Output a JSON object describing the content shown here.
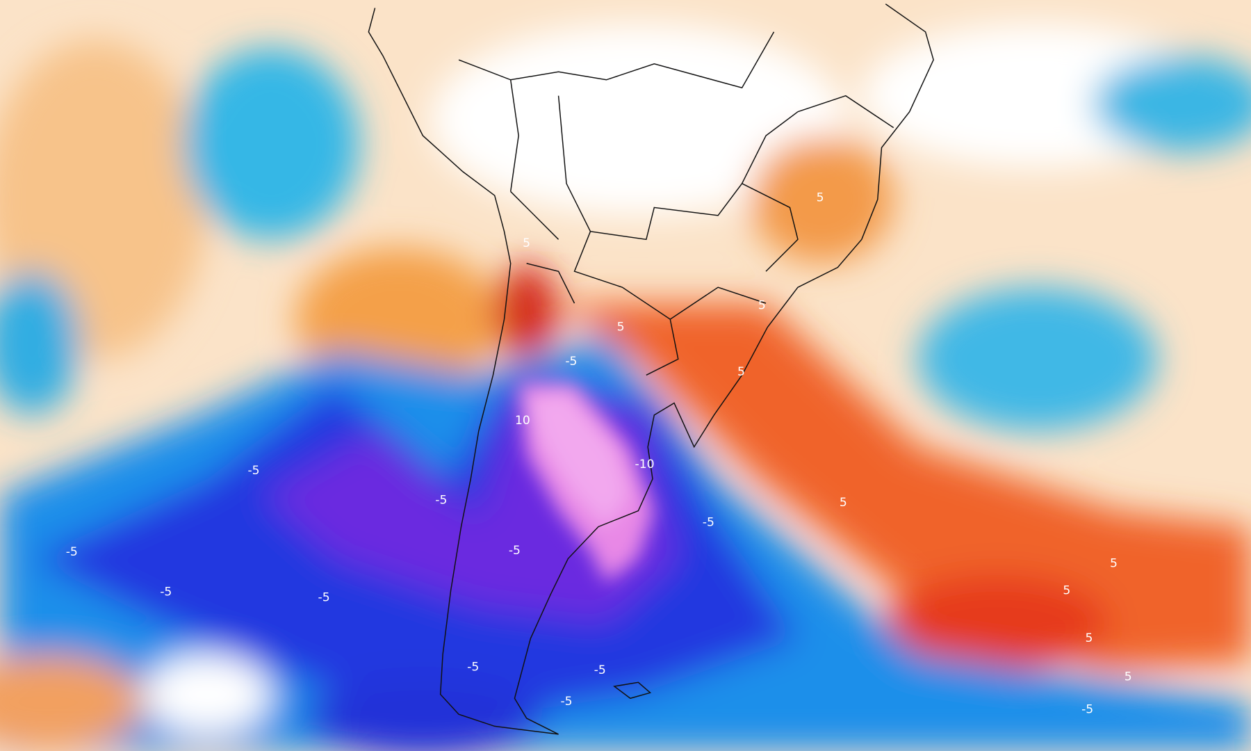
{
  "map": {
    "contour_labels": [
      "5",
      "5",
      "5",
      "5",
      "5",
      "5",
      "5",
      "5",
      "5",
      "5",
      "-5",
      "-5",
      "-5",
      "-5",
      "-5",
      "-5",
      "-5",
      "-5",
      "-5",
      "-5",
      "-5",
      "-5",
      "-10",
      "10"
    ]
  }
}
